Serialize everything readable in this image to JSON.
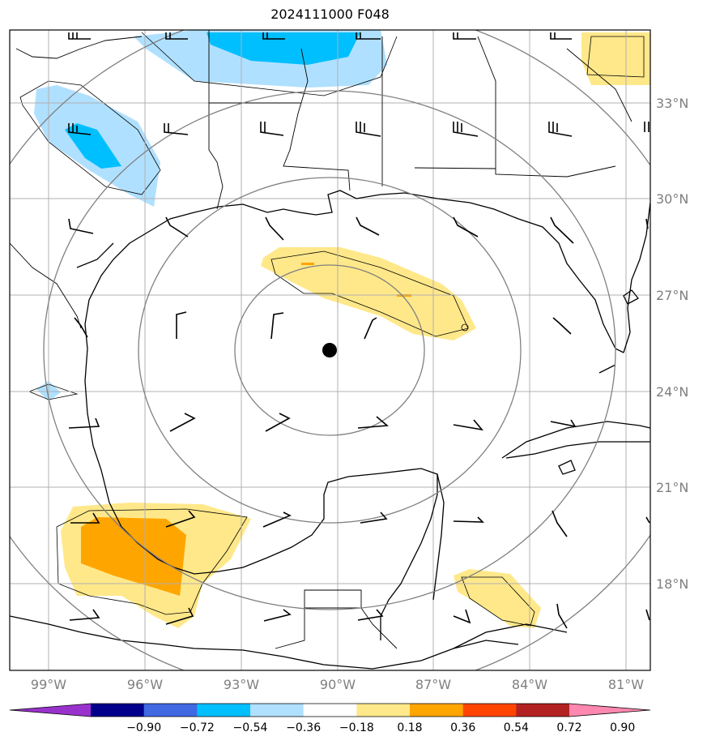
{
  "title": "2024111000 F048",
  "map": {
    "latitude_labels": [
      "33°N",
      "30°N",
      "27°N",
      "24°N",
      "21°N",
      "18°N"
    ],
    "longitude_labels": [
      "99°W",
      "96°W",
      "93°W",
      "90°W",
      "87°W",
      "84°W",
      "81°W"
    ],
    "center_marker": {
      "lon": -90.2,
      "lat": 25.2
    },
    "range_rings": 4,
    "grid": true
  },
  "colorbar": {
    "labels": [
      "−0.90",
      "−0.72",
      "−0.54",
      "−0.36",
      "−0.18",
      "0.18",
      "0.36",
      "0.54",
      "0.72",
      "0.90"
    ],
    "colors": [
      "#9932cc",
      "#00008b",
      "#4169e1",
      "#00bfff",
      "#b0e0ff",
      "#ffffff",
      "#ffe88a",
      "#ffa500",
      "#ff4500",
      "#b22222",
      "#ff88b0"
    ]
  },
  "legend_colors": {
    "neg_light": "#b0e0ff",
    "neg_mid": "#00bfff",
    "pos_light": "#ffe88a",
    "pos_mid": "#ffa500",
    "pos_high": "#ff4500",
    "ring": "#808080",
    "grid": "#b0b0b0"
  }
}
